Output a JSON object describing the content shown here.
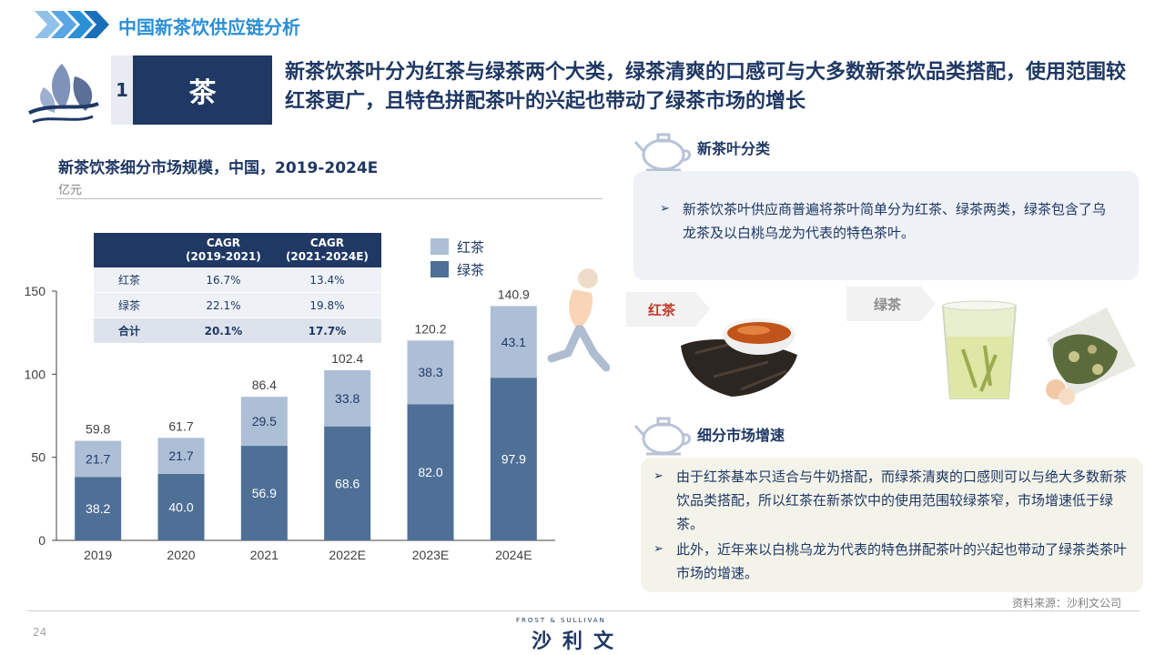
{
  "header": {
    "title": "中国新茶饮供应链分析"
  },
  "section": {
    "number": "1",
    "topic": "茶"
  },
  "headline": "新茶饮茶叶分为红茶与绿茶两个大类，绿茶清爽的口感可与大多数新茶饮品类搭配，使用范围较红茶更广，且特色拼配茶叶的兴起也带动了绿茶市场的增长",
  "chart_header": {
    "title": "新茶饮茶细分市场规模，中国，2019-2024E",
    "unit": "亿元"
  },
  "cagr_table": {
    "headers": [
      "",
      "CAGR\n(2019-2021)",
      "CAGR\n(2021-2024E)"
    ],
    "rows": [
      {
        "label": "红茶",
        "a": "16.7%",
        "b": "13.4%"
      },
      {
        "label": "绿茶",
        "a": "22.1%",
        "b": "19.8%"
      },
      {
        "label": "合计",
        "a": "20.1%",
        "b": "17.7%"
      }
    ]
  },
  "chart_data": {
    "type": "bar",
    "stacked": true,
    "title": "新茶饮茶细分市场规模，中国，2019-2024E",
    "ylabel": "亿元",
    "categories": [
      "2019",
      "2020",
      "2021",
      "2022E",
      "2023E",
      "2024E"
    ],
    "series": [
      {
        "name": "绿茶",
        "values": [
          38.2,
          40.0,
          56.9,
          68.6,
          82.0,
          97.9
        ],
        "color": "#4e6f96"
      },
      {
        "name": "红茶",
        "values": [
          21.7,
          21.7,
          29.5,
          33.8,
          38.3,
          43.1
        ],
        "color": "#adbfd6"
      }
    ],
    "totals": [
      59.8,
      61.7,
      86.4,
      102.4,
      120.2,
      140.9
    ],
    "ylim": [
      0,
      150
    ],
    "yticks": [
      0,
      50,
      100,
      150
    ],
    "legend": [
      "红茶",
      "绿茶"
    ],
    "legend_position": "top-right",
    "grid": false
  },
  "right": {
    "section1_title": "新茶叶分类",
    "section1_text": "新茶饮茶叶供应商普遍将茶叶简单分为红茶、绿茶两类，绿茶包含了乌龙茶及以白桃乌龙为代表的特色茶叶。",
    "tag_black": "红茶",
    "tag_green": "绿茶",
    "section2_title": "细分市场增速",
    "bullet1": "由于红茶基本只适合与牛奶搭配，而绿茶清爽的口感则可以与绝大多数新茶饮品类搭配，所以红茶在新茶饮中的使用范围较绿茶窄，市场增速低于绿茶。",
    "bullet2": "此外，近年来以白桃乌龙为代表的特色拼配茶叶的兴起也带动了绿茶类茶叶市场的增速。"
  },
  "footer": {
    "source": "资料来源：沙利文公司",
    "page": "24",
    "logo_small": "FROST & SULLIVAN",
    "logo_big": "沙利文"
  },
  "colors": {
    "navy": "#1f3864",
    "blue": "#2b8fd6",
    "green_bar": "#4e6f96",
    "black_bar": "#adbfd6",
    "tag_red": "#c0392b",
    "tag_gray": "#8c8c8c"
  }
}
